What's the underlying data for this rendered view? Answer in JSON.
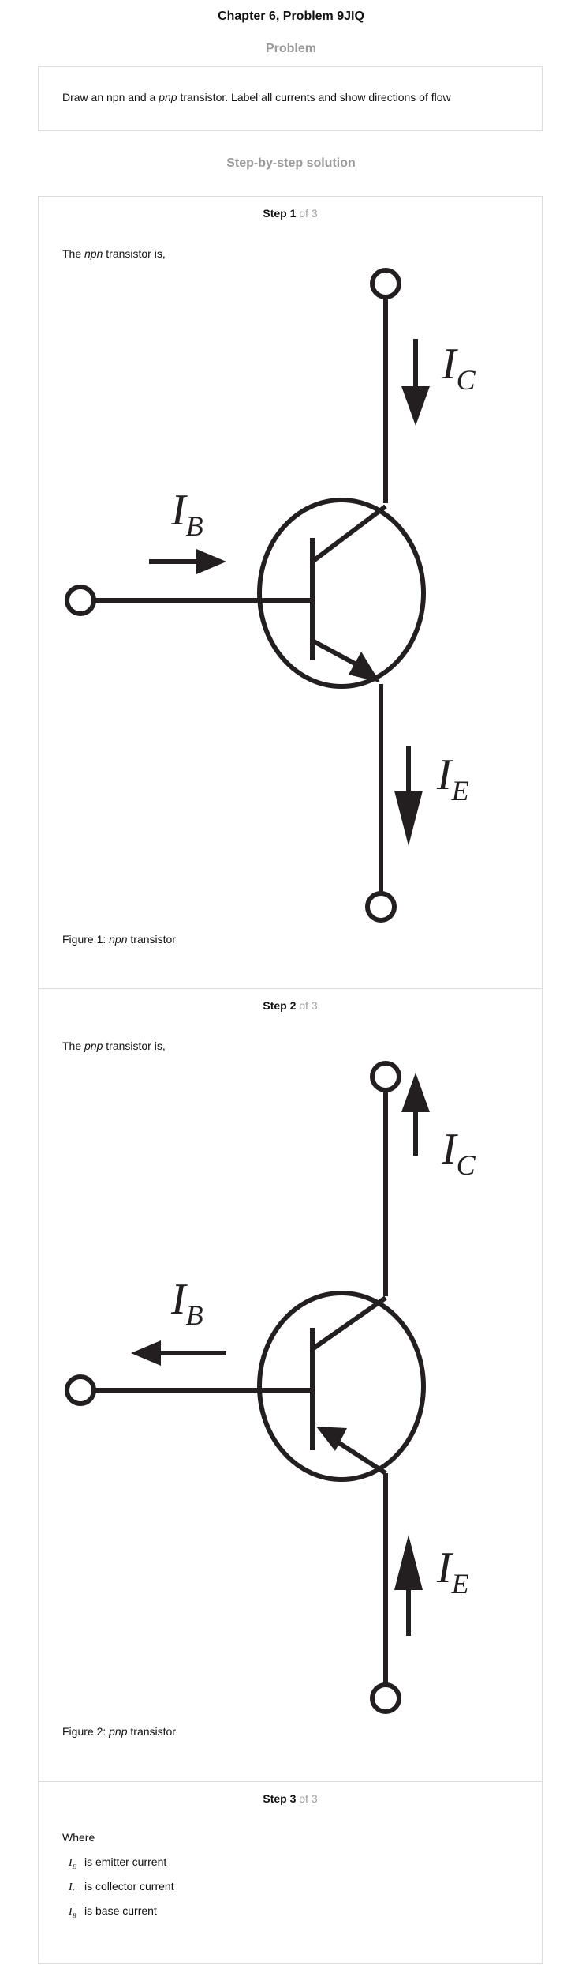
{
  "header": {
    "title": "Chapter 6, Problem 9JIQ"
  },
  "problem": {
    "heading": "Problem",
    "text_before": "Draw an npn and a ",
    "text_italic": "pnp",
    "text_after": " transistor. Label all currents and show directions of flow"
  },
  "solution": {
    "heading": "Step-by-step solution"
  },
  "steps": [
    {
      "label": "Step 1",
      "of": " of 3",
      "intro_before": "The ",
      "intro_italic": "npn",
      "intro_after": " transistor is,",
      "caption_before": "Figure 1: ",
      "caption_italic": "npn",
      "caption_after": " transistor",
      "labels": {
        "ic": "I",
        "ic_sub": "C",
        "ib": "I",
        "ib_sub": "B",
        "ie": "I",
        "ie_sub": "E"
      }
    },
    {
      "label": "Step 2",
      "of": " of 3",
      "intro_before": "The ",
      "intro_italic": "pnp",
      "intro_after": " transistor is,",
      "caption_before": "Figure 2: ",
      "caption_italic": "pnp",
      "caption_after": " transistor",
      "labels": {
        "ic": "I",
        "ic_sub": "C",
        "ib": "I",
        "ib_sub": "B",
        "ie": "I",
        "ie_sub": "E"
      }
    },
    {
      "label": "Step 3",
      "of": " of 3",
      "where": "Where",
      "defs": [
        {
          "sym": "I",
          "sub": "E",
          "text": "is emitter current"
        },
        {
          "sym": "I",
          "sub": "C",
          "text": "is collector current"
        },
        {
          "sym": "I",
          "sub": "B",
          "text": "is base current"
        }
      ]
    }
  ]
}
